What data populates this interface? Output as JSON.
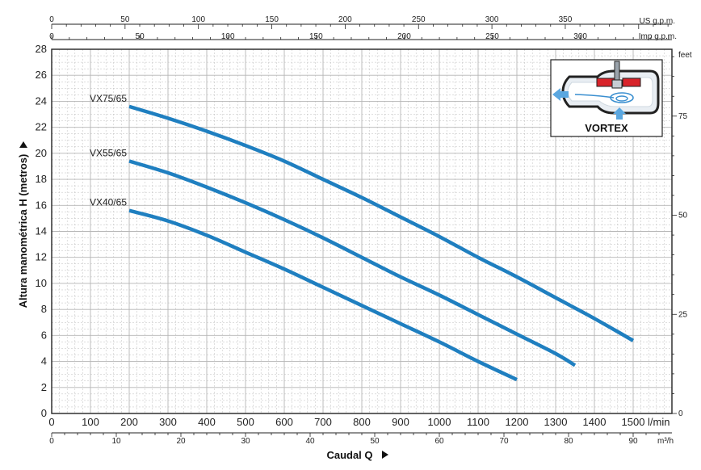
{
  "chart_data": {
    "type": "line",
    "xlabel": "Caudal Q",
    "ylabel": "Altura manométrica H (metros)",
    "x_unit": "l/min",
    "xlim": [
      0,
      1600
    ],
    "ylim": [
      0,
      28
    ],
    "grid": true,
    "x_ticks": [
      "0",
      "100",
      "200",
      "300",
      "400",
      "500",
      "600",
      "700",
      "800",
      "900",
      "1000",
      "1100",
      "1200",
      "1300",
      "1400",
      "1500"
    ],
    "y_ticks": [
      "0",
      "2",
      "4",
      "6",
      "8",
      "10",
      "12",
      "14",
      "16",
      "18",
      "20",
      "22",
      "24",
      "26",
      "28"
    ],
    "secondary_axes": {
      "us_gpm": {
        "label": "US g.p.m.",
        "ticks": [
          "0",
          "50",
          "100",
          "150",
          "200",
          "250",
          "300",
          "350"
        ]
      },
      "imp_gpm": {
        "label": "Imp g.p.m.",
        "ticks": [
          "0",
          "50",
          "100",
          "150",
          "200",
          "250",
          "300"
        ]
      },
      "m3h": {
        "label": "m³/h",
        "ticks": [
          "0",
          "10",
          "20",
          "30",
          "40",
          "50",
          "60",
          "70",
          "80",
          "90"
        ]
      },
      "feet": {
        "label": "feet",
        "ticks": [
          "0",
          "25",
          "50",
          "75"
        ]
      }
    },
    "series": [
      {
        "name": "VX75/65",
        "x": [
          200,
          300,
          400,
          500,
          600,
          700,
          800,
          900,
          1000,
          1100,
          1200,
          1300,
          1400,
          1500
        ],
        "y": [
          23.6,
          22.7,
          21.7,
          20.6,
          19.4,
          18.0,
          16.6,
          15.1,
          13.6,
          12.0,
          10.5,
          8.9,
          7.3,
          5.6
        ]
      },
      {
        "name": "VX55/65",
        "x": [
          200,
          300,
          400,
          500,
          600,
          700,
          800,
          900,
          1000,
          1100,
          1200,
          1300,
          1350
        ],
        "y": [
          19.4,
          18.5,
          17.4,
          16.2,
          14.9,
          13.5,
          12.0,
          10.5,
          9.1,
          7.6,
          6.1,
          4.6,
          3.7
        ]
      },
      {
        "name": "VX40/65",
        "x": [
          200,
          300,
          400,
          500,
          600,
          700,
          800,
          900,
          1000,
          1100,
          1200
        ],
        "y": [
          15.6,
          14.8,
          13.7,
          12.4,
          11.1,
          9.7,
          8.3,
          6.9,
          5.5,
          4.0,
          2.6
        ]
      }
    ]
  },
  "inset": {
    "label": "VORTEX"
  },
  "colors": {
    "line": "#1f7fc0",
    "grid": "#b5b5b5",
    "frame": "#222222",
    "impeller": "#d8232a"
  }
}
